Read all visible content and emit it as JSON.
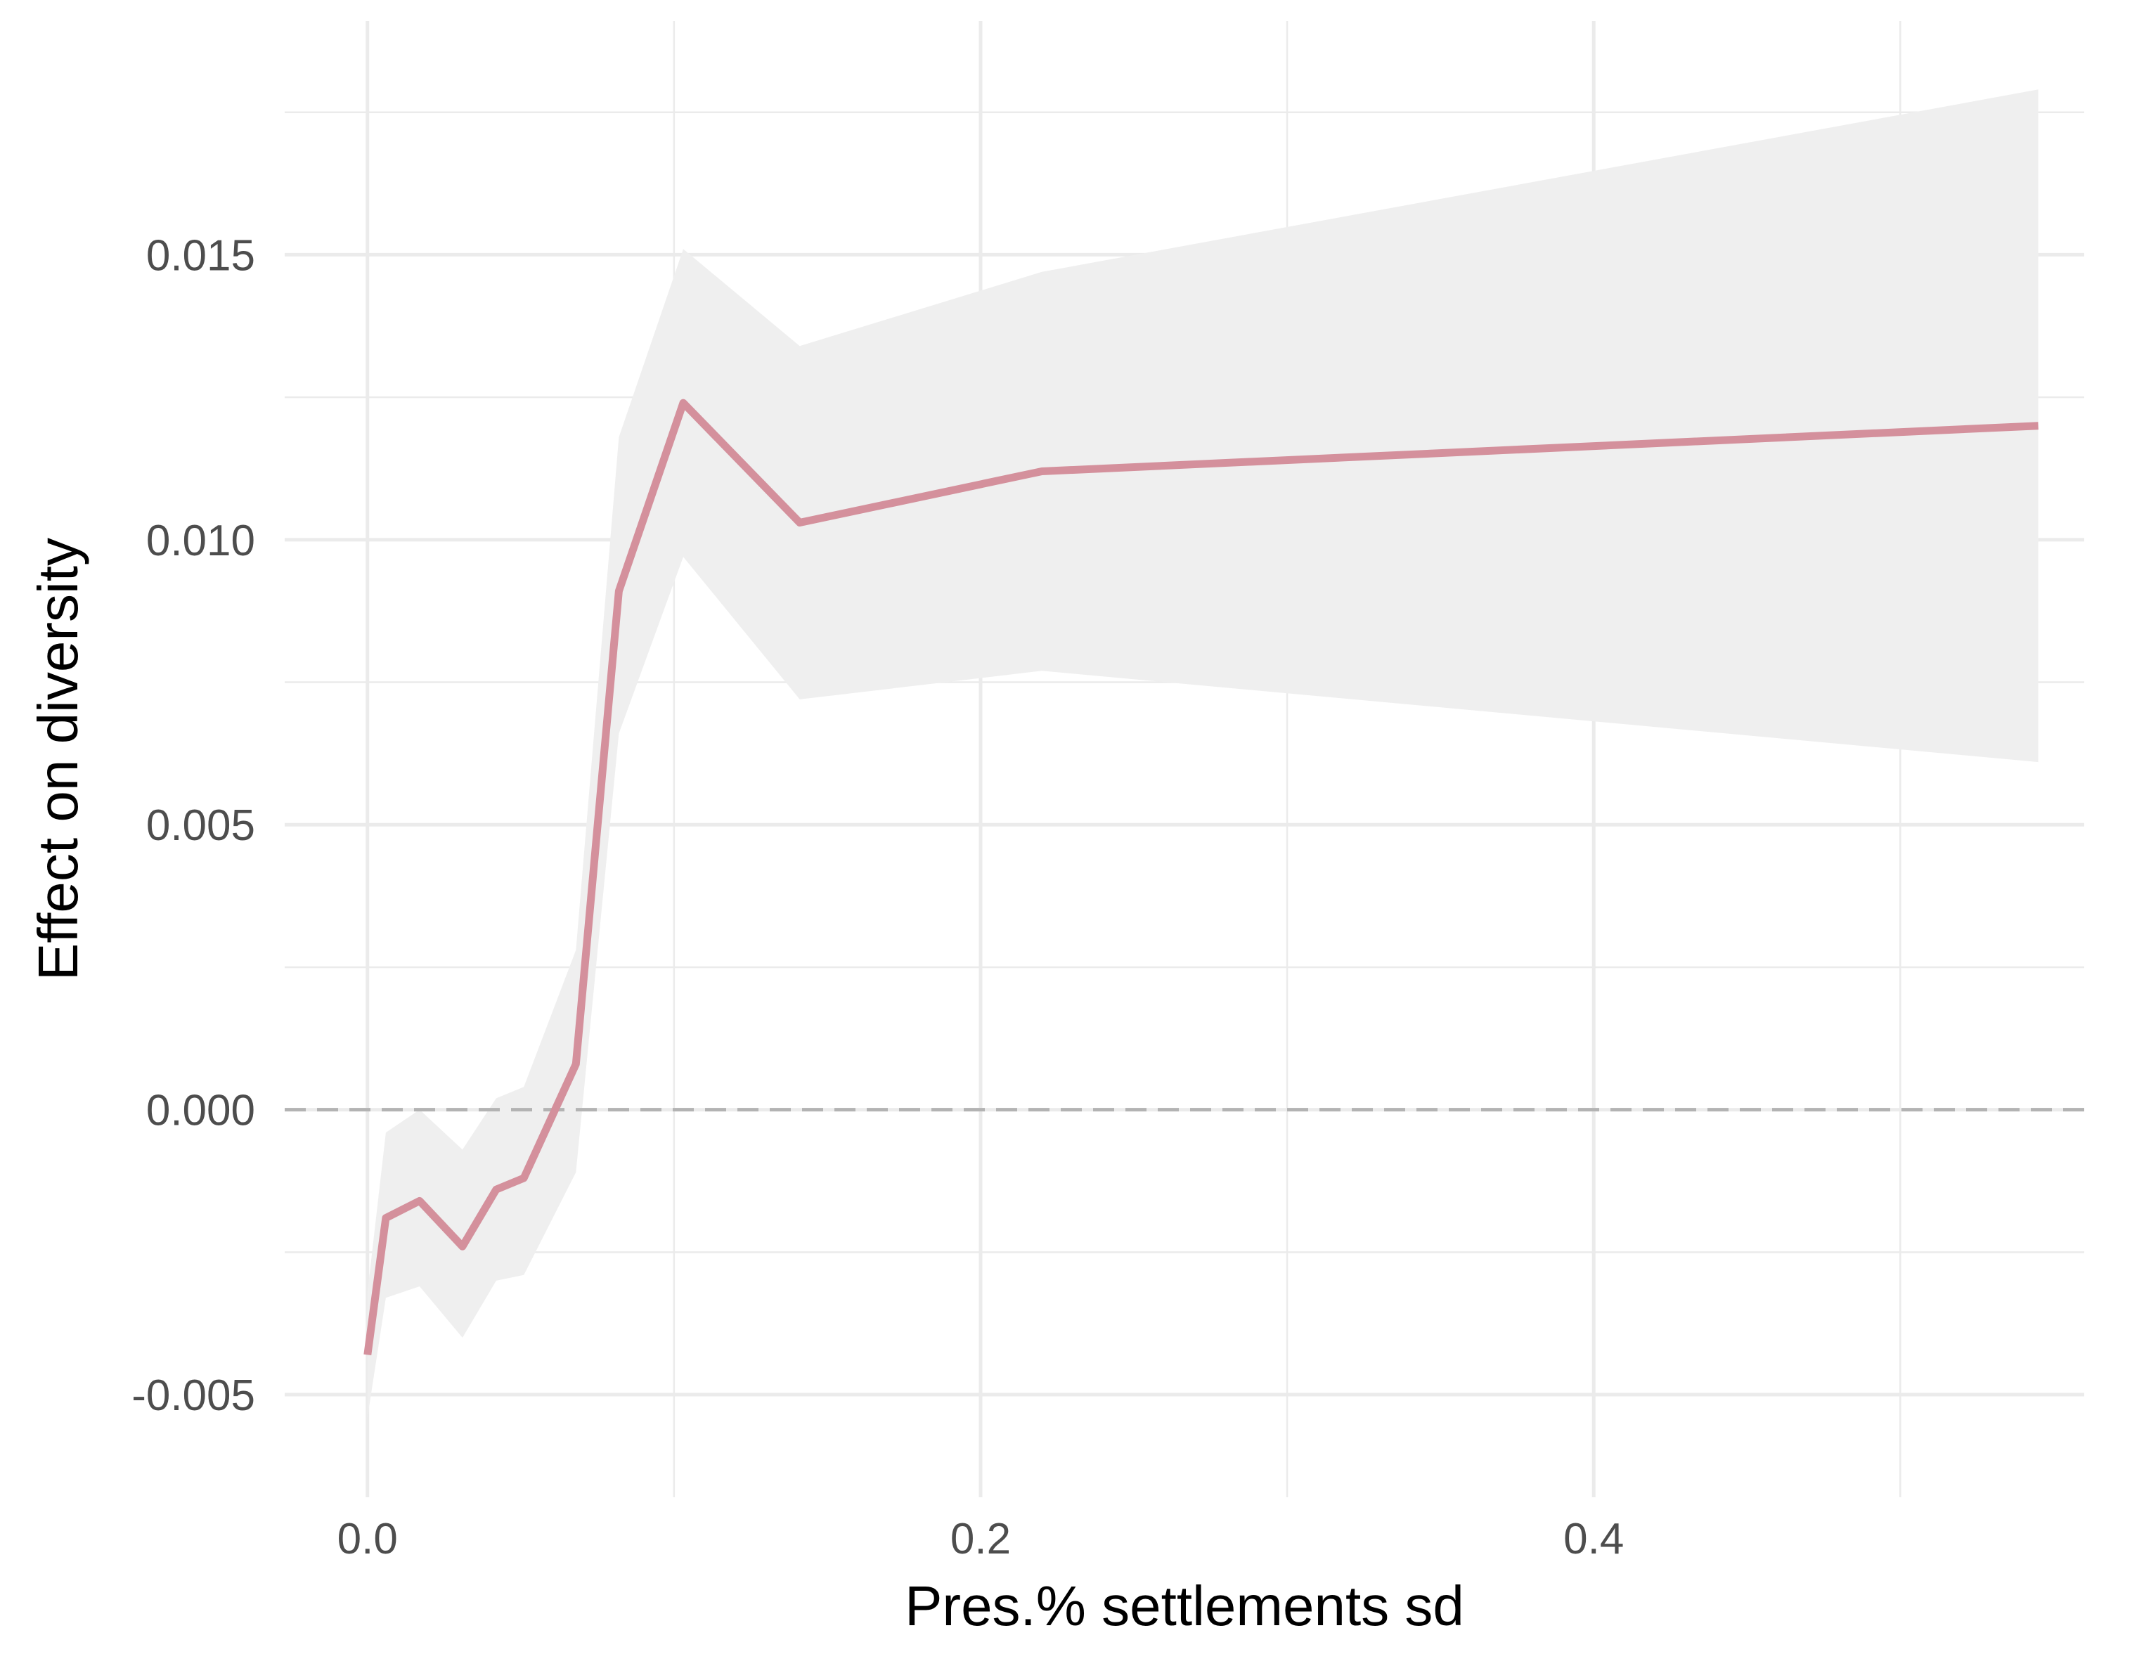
{
  "chart_data": {
    "type": "line",
    "title": "",
    "xlabel": "Pres.% settlements sd",
    "ylabel": "Effect on diversity",
    "xlim": [
      -0.027,
      0.56
    ],
    "ylim": [
      -0.0068,
      0.0191
    ],
    "x_ticks": [
      {
        "value": 0.0,
        "label": "0.0"
      },
      {
        "value": 0.2,
        "label": "0.2"
      },
      {
        "value": 0.4,
        "label": "0.4"
      }
    ],
    "x_minor_ticks": [
      0.1,
      0.3,
      0.5
    ],
    "y_ticks": [
      {
        "value": -0.005,
        "label": "-0.005"
      },
      {
        "value": 0.0,
        "label": "0.000"
      },
      {
        "value": 0.005,
        "label": "0.005"
      },
      {
        "value": 0.01,
        "label": "0.010"
      },
      {
        "value": 0.015,
        "label": "0.015"
      }
    ],
    "y_minor_ticks": [
      -0.0025,
      0.0025,
      0.0075,
      0.0125,
      0.0175
    ],
    "grid": true,
    "reference_line": {
      "y": 0.0,
      "style": "dashed",
      "color": "#b3b3b3"
    },
    "series": [
      {
        "name": "Effect on diversity",
        "color": "#d4909c",
        "ribbon_color": "#efefef",
        "x": [
          0.0,
          0.006,
          0.017,
          0.031,
          0.042,
          0.051,
          0.068,
          0.082,
          0.103,
          0.141,
          0.22,
          0.545
        ],
        "y": [
          -0.0043,
          -0.0019,
          -0.0016,
          -0.0024,
          -0.0014,
          -0.0012,
          0.0008,
          0.0091,
          0.0124,
          0.0103,
          0.0112,
          0.012
        ],
        "lower": [
          -0.0054,
          -0.0033,
          -0.0031,
          -0.004,
          -0.003,
          -0.0029,
          -0.0011,
          0.0066,
          0.0097,
          0.0072,
          0.0077,
          0.0061
        ],
        "upper": [
          -0.0032,
          -0.0004,
          0.0,
          -0.0007,
          0.0002,
          0.0004,
          0.0028,
          0.0118,
          0.0151,
          0.0134,
          0.0147,
          0.0179
        ]
      }
    ]
  }
}
